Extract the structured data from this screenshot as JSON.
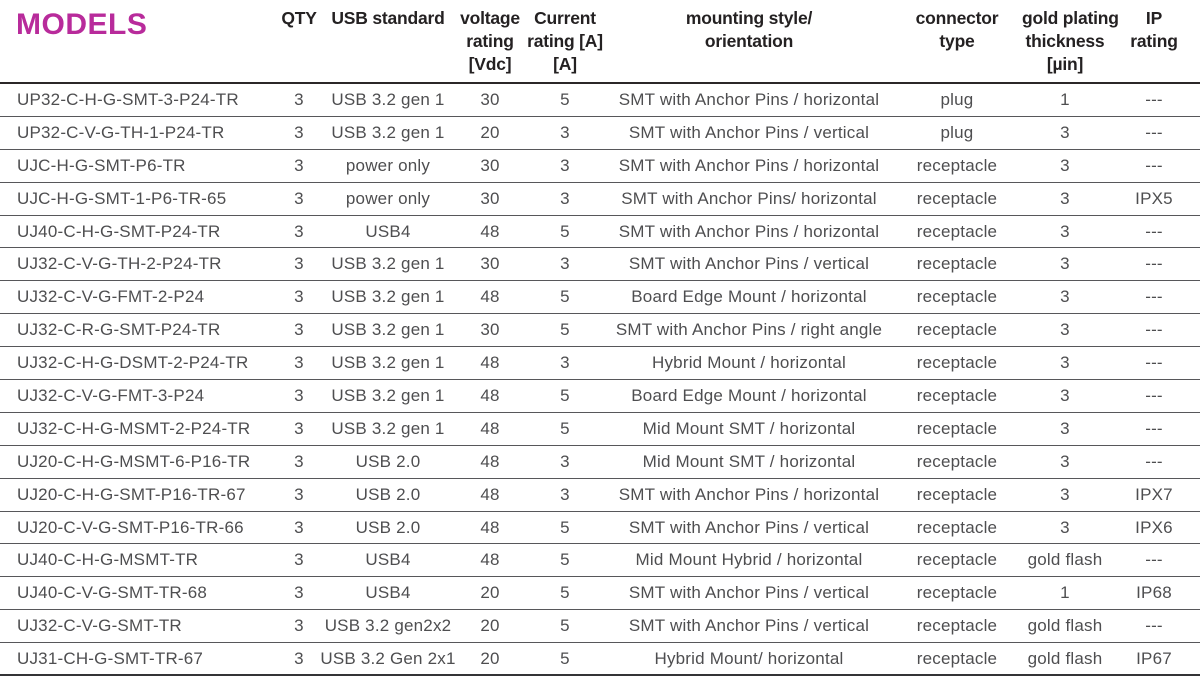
{
  "title": "MODELS",
  "colors": {
    "accent_magenta": "#b82b9b",
    "header_text": "#242122",
    "body_text": "#4e4e50",
    "row_line": "#57575a",
    "header_line": "#2b2728"
  },
  "table": {
    "columns": [
      {
        "id": "model",
        "lines": []
      },
      {
        "id": "qty",
        "lines": [
          "QTY"
        ]
      },
      {
        "id": "usb",
        "lines": [
          "USB standard"
        ]
      },
      {
        "id": "voltage",
        "lines": [
          "voltage",
          "rating",
          "[Vdc]"
        ]
      },
      {
        "id": "current",
        "lines": [
          "Current",
          "rating [A]",
          "[A]"
        ]
      },
      {
        "id": "mounting",
        "lines": [
          "mounting style/",
          "orientation"
        ]
      },
      {
        "id": "connector",
        "lines": [
          "connector",
          "type"
        ]
      },
      {
        "id": "gold",
        "lines": [
          "gold plating",
          "thickness",
          "[µin]"
        ]
      },
      {
        "id": "ip",
        "lines": [
          "IP",
          "rating"
        ]
      }
    ],
    "rows": [
      [
        "UP32-C-H-G-SMT-3-P24-TR",
        "3",
        "USB 3.2 gen 1",
        "30",
        "5",
        "SMT with Anchor Pins / horizontal",
        "plug",
        "1",
        "---"
      ],
      [
        "UP32-C-V-G-TH-1-P24-TR",
        "3",
        "USB 3.2 gen 1",
        "20",
        "3",
        "SMT with Anchor Pins / vertical",
        "plug",
        "3",
        "---"
      ],
      [
        "UJC-H-G-SMT-P6-TR",
        "3",
        "power only",
        "30",
        "3",
        "SMT with Anchor Pins / horizontal",
        "receptacle",
        "3",
        "---"
      ],
      [
        "UJC-H-G-SMT-1-P6-TR-65",
        "3",
        "power only",
        "30",
        "3",
        "SMT with Anchor Pins/ horizontal",
        "receptacle",
        "3",
        "IPX5"
      ],
      [
        "UJ40-C-H-G-SMT-P24-TR",
        "3",
        "USB4",
        "48",
        "5",
        "SMT with Anchor Pins / horizontal",
        "receptacle",
        "3",
        "---"
      ],
      [
        "UJ32-C-V-G-TH-2-P24-TR",
        "3",
        "USB 3.2 gen 1",
        "30",
        "3",
        "SMT with Anchor Pins / vertical",
        "receptacle",
        "3",
        "---"
      ],
      [
        "UJ32-C-V-G-FMT-2-P24",
        "3",
        "USB 3.2 gen 1",
        "48",
        "5",
        "Board Edge Mount / horizontal",
        "receptacle",
        "3",
        "---"
      ],
      [
        "UJ32-C-R-G-SMT-P24-TR",
        "3",
        "USB 3.2 gen 1",
        "30",
        "5",
        "SMT with Anchor Pins / right angle",
        "receptacle",
        "3",
        "---"
      ],
      [
        "UJ32-C-H-G-DSMT-2-P24-TR",
        "3",
        "USB 3.2 gen 1",
        "48",
        "3",
        "Hybrid Mount / horizontal",
        "receptacle",
        "3",
        "---"
      ],
      [
        "UJ32-C-V-G-FMT-3-P24",
        "3",
        "USB 3.2 gen 1",
        "48",
        "5",
        "Board Edge Mount / horizontal",
        "receptacle",
        "3",
        "---"
      ],
      [
        "UJ32-C-H-G-MSMT-2-P24-TR",
        "3",
        "USB 3.2 gen 1",
        "48",
        "5",
        "Mid Mount SMT / horizontal",
        "receptacle",
        "3",
        "---"
      ],
      [
        "UJ20-C-H-G-MSMT-6-P16-TR",
        "3",
        "USB 2.0",
        "48",
        "3",
        "Mid Mount SMT / horizontal",
        "receptacle",
        "3",
        "---"
      ],
      [
        "UJ20-C-H-G-SMT-P16-TR-67",
        "3",
        "USB 2.0",
        "48",
        "3",
        "SMT with Anchor Pins / horizontal",
        "receptacle",
        "3",
        "IPX7"
      ],
      [
        "UJ20-C-V-G-SMT-P16-TR-66",
        "3",
        "USB 2.0",
        "48",
        "5",
        "SMT with Anchor Pins / vertical",
        "receptacle",
        "3",
        "IPX6"
      ],
      [
        "UJ40-C-H-G-MSMT-TR",
        "3",
        "USB4",
        "48",
        "5",
        "Mid Mount Hybrid / horizontal",
        "receptacle",
        "gold flash",
        "---"
      ],
      [
        "UJ40-C-V-G-SMT-TR-68",
        "3",
        "USB4",
        "20",
        "5",
        "SMT with Anchor Pins / vertical",
        "receptacle",
        "1",
        "IP68"
      ],
      [
        "UJ32-C-V-G-SMT-TR",
        "3",
        "USB 3.2 gen2x2",
        "20",
        "5",
        "SMT with Anchor Pins / vertical",
        "receptacle",
        "gold flash",
        "---"
      ],
      [
        "UJ31-CH-G-SMT-TR-67",
        "3",
        "USB 3.2 Gen 2x1",
        "20",
        "5",
        "Hybrid Mount/ horizontal",
        "receptacle",
        "gold flash",
        "IP67"
      ]
    ]
  }
}
